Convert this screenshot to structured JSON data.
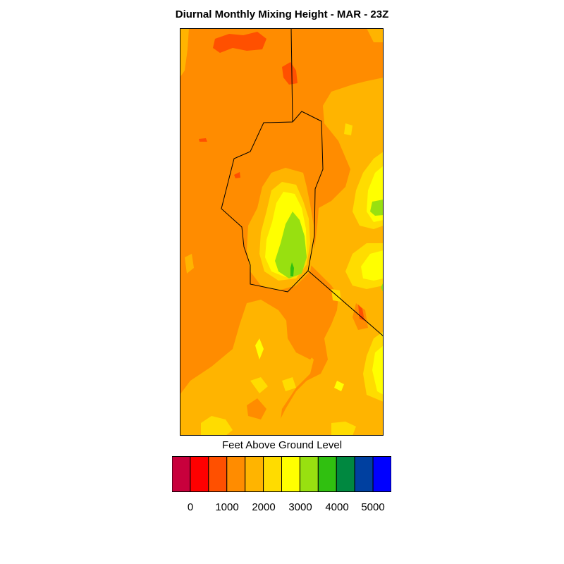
{
  "title": "Diurnal Monthly Mixing Height - MAR - 23Z",
  "legend": {
    "title": "Feet Above Ground Level",
    "colors": [
      "#c8003c",
      "#ff0000",
      "#ff5000",
      "#ff8c00",
      "#ffb400",
      "#ffdc00",
      "#ffff00",
      "#98e010",
      "#30c010",
      "#008840",
      "#0040a0",
      "#0000ff"
    ],
    "tick_labels": [
      "0",
      "1000",
      "2000",
      "3000",
      "4000",
      "5000"
    ]
  },
  "map": {
    "background_color": "#ff8c00",
    "contour_levels": [
      "orange",
      "amber",
      "gold",
      "yellow",
      "yellow-green",
      "green"
    ]
  }
}
